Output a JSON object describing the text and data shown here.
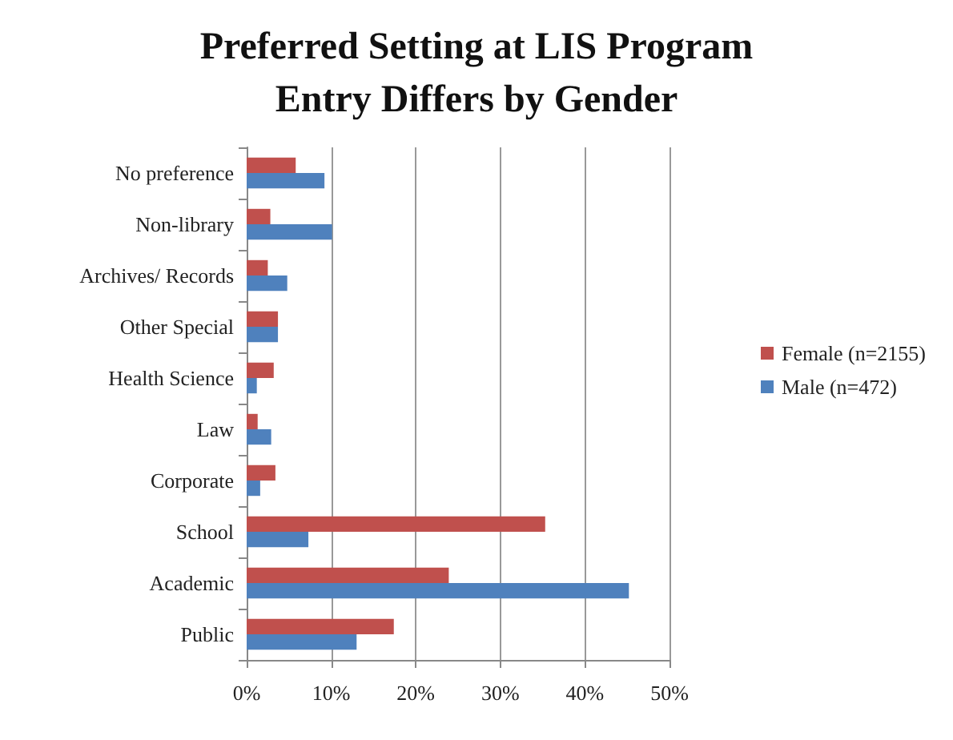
{
  "chart_data": {
    "type": "bar",
    "orientation": "horizontal",
    "title": "Preferred Setting at LIS Program\nEntry Differs by Gender",
    "categories": [
      "No preference",
      "Non-library",
      "Archives/ Records",
      "Other Special",
      "Health Science",
      "Law",
      "Corporate",
      "School",
      "Academic",
      "Public"
    ],
    "series": [
      {
        "name": "Female (n=2155)",
        "color": "#c0504d",
        "values": [
          5.8,
          2.8,
          2.5,
          3.7,
          3.2,
          1.3,
          3.4,
          35.3,
          23.9,
          17.4
        ]
      },
      {
        "name": "Male (n=472)",
        "color": "#4f81bd",
        "values": [
          9.2,
          10.1,
          4.8,
          3.7,
          1.2,
          2.9,
          1.6,
          7.3,
          45.2,
          13.0
        ]
      }
    ],
    "xlim": [
      0,
      50
    ],
    "xticks": [
      {
        "value": 0,
        "label": "0%"
      },
      {
        "value": 10,
        "label": "10%"
      },
      {
        "value": 20,
        "label": "20%"
      },
      {
        "value": 30,
        "label": "30%"
      },
      {
        "value": 40,
        "label": "40%"
      },
      {
        "value": 50,
        "label": "50%"
      }
    ],
    "grid": "x",
    "legend": "right"
  }
}
